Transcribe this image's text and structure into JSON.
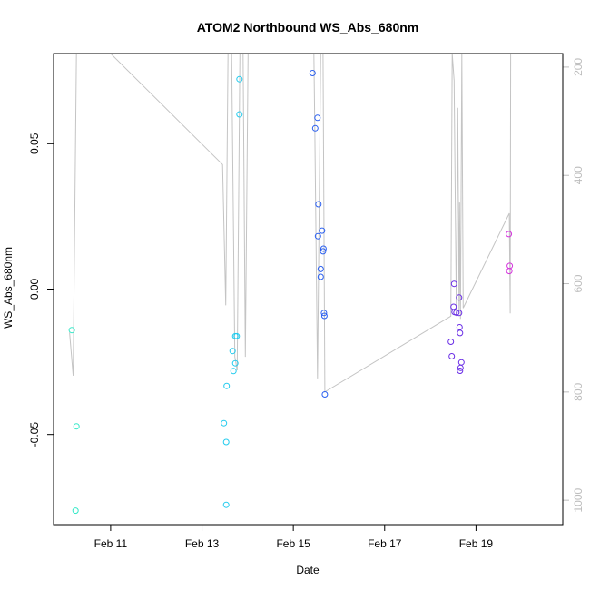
{
  "chart_data": {
    "type": "scatter",
    "title": "ATOM2 Northbound WS_Abs_680nm",
    "xlabel": "Date",
    "ylabel": "WS_Abs_680nm",
    "x_unit": "days since Feb 10 00:00",
    "xlim": [
      -0.25,
      10.9
    ],
    "ylim": [
      -0.081,
      0.081
    ],
    "right_ylim": [
      1045,
      175
    ],
    "x_ticks": [
      {
        "value": 1,
        "label": "Feb 11"
      },
      {
        "value": 3,
        "label": "Feb 13"
      },
      {
        "value": 5,
        "label": "Feb 15"
      },
      {
        "value": 7,
        "label": "Feb 17"
      },
      {
        "value": 9,
        "label": "Feb 19"
      }
    ],
    "y_ticks": [
      {
        "value": -0.05,
        "label": "-0.05"
      },
      {
        "value": 0.0,
        "label": "0.00"
      },
      {
        "value": 0.05,
        "label": "0.05"
      }
    ],
    "right_ticks": [
      {
        "value": 200,
        "label": "200"
      },
      {
        "value": 400,
        "label": "400"
      },
      {
        "value": 600,
        "label": "600"
      },
      {
        "value": 800,
        "label": "800"
      },
      {
        "value": 1000,
        "label": "1000"
      }
    ],
    "points": [
      {
        "x": 0.15,
        "y": -0.0141,
        "color": "#33e8c7"
      },
      {
        "x": 0.25,
        "y": -0.0472,
        "color": "#33e8c7"
      },
      {
        "x": 0.23,
        "y": -0.0762,
        "color": "#33e8c7"
      },
      {
        "x": 3.48,
        "y": -0.0461,
        "color": "#22cbee"
      },
      {
        "x": 3.53,
        "y": -0.0526,
        "color": "#22cbee"
      },
      {
        "x": 3.54,
        "y": -0.0333,
        "color": "#22cbee"
      },
      {
        "x": 3.53,
        "y": -0.0742,
        "color": "#22cbee"
      },
      {
        "x": 3.67,
        "y": -0.0213,
        "color": "#22cbee"
      },
      {
        "x": 3.69,
        "y": -0.0282,
        "color": "#22cbee"
      },
      {
        "x": 3.73,
        "y": -0.0255,
        "color": "#22cbee"
      },
      {
        "x": 3.73,
        "y": -0.0162,
        "color": "#22cbee"
      },
      {
        "x": 3.76,
        "y": -0.0162,
        "color": "#22cbee"
      },
      {
        "x": 3.82,
        "y": 0.0722,
        "color": "#22cbee"
      },
      {
        "x": 3.82,
        "y": 0.0601,
        "color": "#22cbee"
      },
      {
        "x": 5.42,
        "y": 0.0743,
        "color": "#2a5ff0"
      },
      {
        "x": 5.48,
        "y": 0.0553,
        "color": "#2a5ff0"
      },
      {
        "x": 5.53,
        "y": 0.0589,
        "color": "#2a5ff0"
      },
      {
        "x": 5.55,
        "y": 0.0292,
        "color": "#2a5ff0"
      },
      {
        "x": 5.54,
        "y": 0.0182,
        "color": "#2a5ff0"
      },
      {
        "x": 5.63,
        "y": 0.0201,
        "color": "#2a5ff0"
      },
      {
        "x": 5.66,
        "y": 0.0139,
        "color": "#2a5ff0"
      },
      {
        "x": 5.65,
        "y": 0.013,
        "color": "#2a5ff0"
      },
      {
        "x": 5.6,
        "y": 0.0069,
        "color": "#2a5ff0"
      },
      {
        "x": 5.6,
        "y": 0.0042,
        "color": "#2a5ff0"
      },
      {
        "x": 5.67,
        "y": -0.0082,
        "color": "#2a5ff0"
      },
      {
        "x": 5.68,
        "y": -0.0092,
        "color": "#2a5ff0"
      },
      {
        "x": 5.69,
        "y": -0.0362,
        "color": "#2a5ff0"
      },
      {
        "x": 8.45,
        "y": -0.0181,
        "color": "#6a2ee6"
      },
      {
        "x": 8.47,
        "y": -0.0231,
        "color": "#6a2ee6"
      },
      {
        "x": 8.52,
        "y": 0.0018,
        "color": "#6a2ee6"
      },
      {
        "x": 8.51,
        "y": -0.0061,
        "color": "#6a2ee6"
      },
      {
        "x": 8.53,
        "y": -0.0079,
        "color": "#6a2ee6"
      },
      {
        "x": 8.57,
        "y": -0.0081,
        "color": "#6a2ee6"
      },
      {
        "x": 8.63,
        "y": -0.0082,
        "color": "#6a2ee6"
      },
      {
        "x": 8.63,
        "y": -0.0029,
        "color": "#6a2ee6"
      },
      {
        "x": 8.64,
        "y": -0.0131,
        "color": "#6a2ee6"
      },
      {
        "x": 8.65,
        "y": -0.0151,
        "color": "#6a2ee6"
      },
      {
        "x": 8.68,
        "y": -0.0252,
        "color": "#6a2ee6"
      },
      {
        "x": 8.66,
        "y": -0.0271,
        "color": "#6a2ee6"
      },
      {
        "x": 8.65,
        "y": -0.0281,
        "color": "#6a2ee6"
      },
      {
        "x": 9.72,
        "y": 0.0189,
        "color": "#d534dd"
      },
      {
        "x": 9.74,
        "y": 0.008,
        "color": "#d534dd"
      },
      {
        "x": 9.73,
        "y": 0.0062,
        "color": "#d534dd"
      }
    ],
    "depth_line": [
      {
        "x": 0.1,
        "y": 690
      },
      {
        "x": 0.18,
        "y": 770
      },
      {
        "x": 0.25,
        "y": 175
      },
      {
        "x": 0.48,
        "y": 175
      },
      {
        "x": 1.0,
        "y": 175
      },
      {
        "x": 3.45,
        "y": 380
      },
      {
        "x": 3.52,
        "y": 640
      },
      {
        "x": 3.57,
        "y": 175
      },
      {
        "x": 3.65,
        "y": 175
      },
      {
        "x": 3.72,
        "y": 735
      },
      {
        "x": 3.77,
        "y": 760
      },
      {
        "x": 3.83,
        "y": 175
      },
      {
        "x": 3.9,
        "y": 175
      },
      {
        "x": 3.95,
        "y": 735
      },
      {
        "x": 4.01,
        "y": 175
      },
      {
        "x": 5.45,
        "y": 175
      },
      {
        "x": 5.47,
        "y": 310
      },
      {
        "x": 5.53,
        "y": 775
      },
      {
        "x": 5.6,
        "y": 175
      },
      {
        "x": 5.65,
        "y": 175
      },
      {
        "x": 5.69,
        "y": 800
      },
      {
        "x": 8.45,
        "y": 660
      },
      {
        "x": 8.48,
        "y": 175
      },
      {
        "x": 8.52,
        "y": 225
      },
      {
        "x": 8.57,
        "y": 660
      },
      {
        "x": 8.6,
        "y": 275
      },
      {
        "x": 8.63,
        "y": 650
      },
      {
        "x": 8.64,
        "y": 450
      },
      {
        "x": 8.66,
        "y": 665
      },
      {
        "x": 8.69,
        "y": 175
      },
      {
        "x": 8.72,
        "y": 645
      },
      {
        "x": 9.73,
        "y": 470
      },
      {
        "x": 9.75,
        "y": 655
      },
      {
        "x": 9.76,
        "y": 175
      }
    ]
  }
}
